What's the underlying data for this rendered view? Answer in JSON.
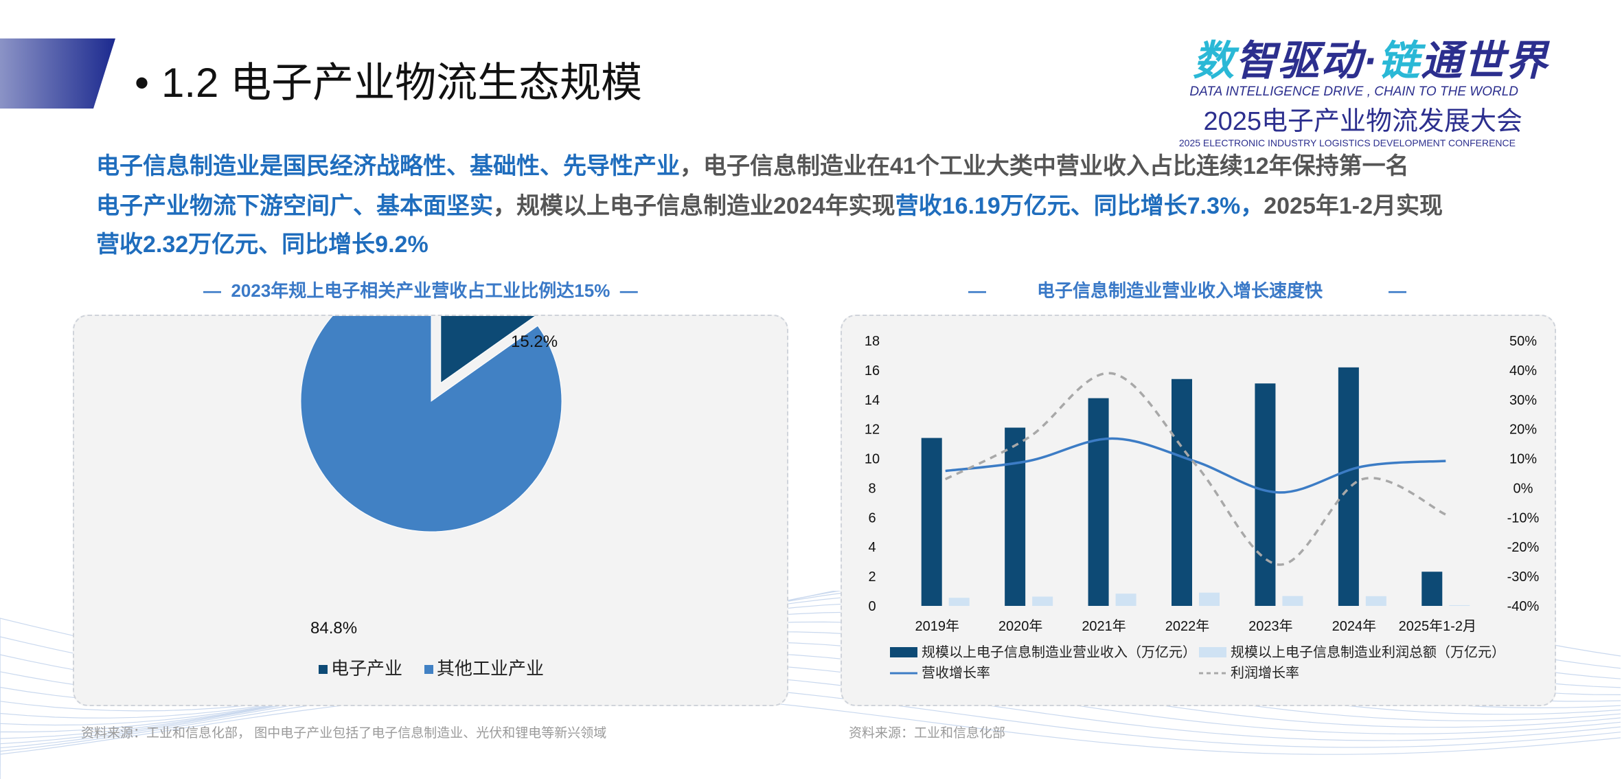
{
  "title": {
    "bullet": "•",
    "text": "1.2 电子产业物流生态规模"
  },
  "logo": {
    "line1_a": "数",
    "line1_b": "智驱动·",
    "line1_c": "链",
    "line1_d": "通世界",
    "line2": "DATA INTELLIGENCE DRIVE , CHAIN TO THE WORLD",
    "line3": "2025电子产业物流发展大会",
    "line4": "2025 ELECTRONIC INDUSTRY LOGISTICS DEVELOPMENT CONFERENCE"
  },
  "paragraphs": {
    "p1_hl": "电子信息制造业是国民经济战略性、基础性、先导性产业",
    "p1_rest": "，电子信息制造业在41个工业大类中营业收入占比连续12年保持第一名",
    "p2_hl1": "电子产业物流下游空间广、基本面坚实",
    "p2_mid": "，规模以上电子信息制造业2024年实现",
    "p2_hl2": "营收16.19万亿元、同比增长7.3%，",
    "p2_mid2": "2025年1-2月实现",
    "p2_hl3": "营收2.32万亿元、同比增长9.2%"
  },
  "pie_panel": {
    "title": "2023年规上电子相关产业营收占工业比例达15%",
    "source": "资料来源：工业和信息化部，  图中电子产业包括了电子信息制造业、光伏和锂电等新兴领域"
  },
  "bar_panel": {
    "title": "电子信息制造业营业收入增长速度快",
    "source": "资料来源：工业和信息化部"
  },
  "chart_data": [
    {
      "type": "pie",
      "categories": [
        "电子产业",
        "其他工业产业"
      ],
      "values": [
        15.2,
        84.8
      ],
      "value_labels": [
        "15.2%",
        "84.8%"
      ],
      "colors": [
        "#0d4a75",
        "#4181c4"
      ],
      "exploded": "电子产业",
      "legend": "bottom"
    },
    {
      "type": "bar",
      "categories": [
        "2019年",
        "2020年",
        "2021年",
        "2022年",
        "2023年",
        "2024年",
        "2025年1-2月"
      ],
      "series": [
        {
          "name": "规模以上电子信息制造业营业收入（万亿元）",
          "kind": "bar",
          "axis": "left",
          "color": "#0d4a75",
          "values": [
            11.4,
            12.1,
            14.1,
            15.4,
            15.1,
            16.19,
            2.32
          ]
        },
        {
          "name": "规模以上电子信息制造业利润总额（万亿元）",
          "kind": "bar",
          "axis": "left",
          "color": "#cfe2f3",
          "values": [
            0.55,
            0.63,
            0.83,
            0.9,
            0.67,
            0.66,
            0.05
          ]
        },
        {
          "name": "营收增长率",
          "kind": "line",
          "axis": "right",
          "color": "#3c7cc5",
          "style": "solid",
          "values": [
            5.8,
            9.2,
            16.8,
            9.0,
            -1.5,
            7.3,
            9.2
          ]
        },
        {
          "name": "利润增长率",
          "kind": "line",
          "axis": "right",
          "color": "#a8a8a8",
          "style": "dashed",
          "values": [
            3.0,
            17.2,
            38.9,
            8.0,
            -26.0,
            3.0,
            -9.0
          ]
        }
      ],
      "y_left": {
        "min": 0,
        "max": 18,
        "step": 2,
        "ticks": [
          "0",
          "2",
          "4",
          "6",
          "8",
          "10",
          "12",
          "14",
          "16",
          "18"
        ]
      },
      "y_right": {
        "min": -40,
        "max": 50,
        "step": 10,
        "ticks": [
          "-40%",
          "-30%",
          "-20%",
          "-10%",
          "0%",
          "10%",
          "20%",
          "30%",
          "40%",
          "50%"
        ]
      },
      "grid": false,
      "legend": "bottom"
    }
  ]
}
